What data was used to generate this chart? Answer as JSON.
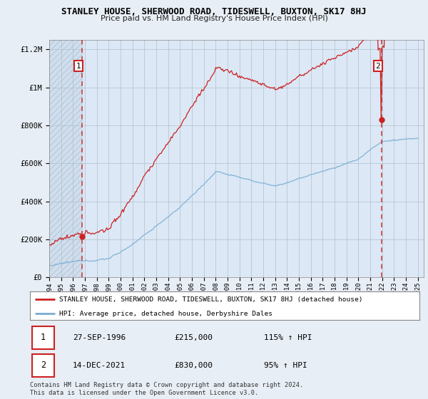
{
  "title": "STANLEY HOUSE, SHERWOOD ROAD, TIDESWELL, BUXTON, SK17 8HJ",
  "subtitle": "Price paid vs. HM Land Registry's House Price Index (HPI)",
  "legend_line1": "STANLEY HOUSE, SHERWOOD ROAD, TIDESWELL, BUXTON, SK17 8HJ (detached house)",
  "legend_line2": "HPI: Average price, detached house, Derbyshire Dales",
  "sale1_date": "27-SEP-1996",
  "sale1_price": "£215,000",
  "sale1_hpi": "115% ↑ HPI",
  "sale1_year": 1996.75,
  "sale1_value": 215000,
  "sale2_date": "14-DEC-2021",
  "sale2_price": "£830,000",
  "sale2_hpi": "95% ↑ HPI",
  "sale2_year": 2021.95,
  "sale2_value": 830000,
  "ylim": [
    0,
    1250000
  ],
  "xlim": [
    1994.0,
    2025.5
  ],
  "yticks": [
    0,
    200000,
    400000,
    600000,
    800000,
    1000000,
    1200000
  ],
  "ytick_labels": [
    "£0",
    "£200K",
    "£400K",
    "£600K",
    "£800K",
    "£1M",
    "£1.2M"
  ],
  "background_color": "#e8eef5",
  "plot_bg_color": "#dce8f5",
  "red_color": "#cc2222",
  "blue_color": "#7aadd4",
  "footer_text": "Contains HM Land Registry data © Crown copyright and database right 2024.\nThis data is licensed under the Open Government Licence v3.0.",
  "xticks": [
    1994,
    1995,
    1996,
    1997,
    1998,
    1999,
    2000,
    2001,
    2002,
    2003,
    2004,
    2005,
    2006,
    2007,
    2008,
    2009,
    2010,
    2011,
    2012,
    2013,
    2014,
    2015,
    2016,
    2017,
    2018,
    2019,
    2020,
    2021,
    2022,
    2023,
    2024,
    2025
  ]
}
